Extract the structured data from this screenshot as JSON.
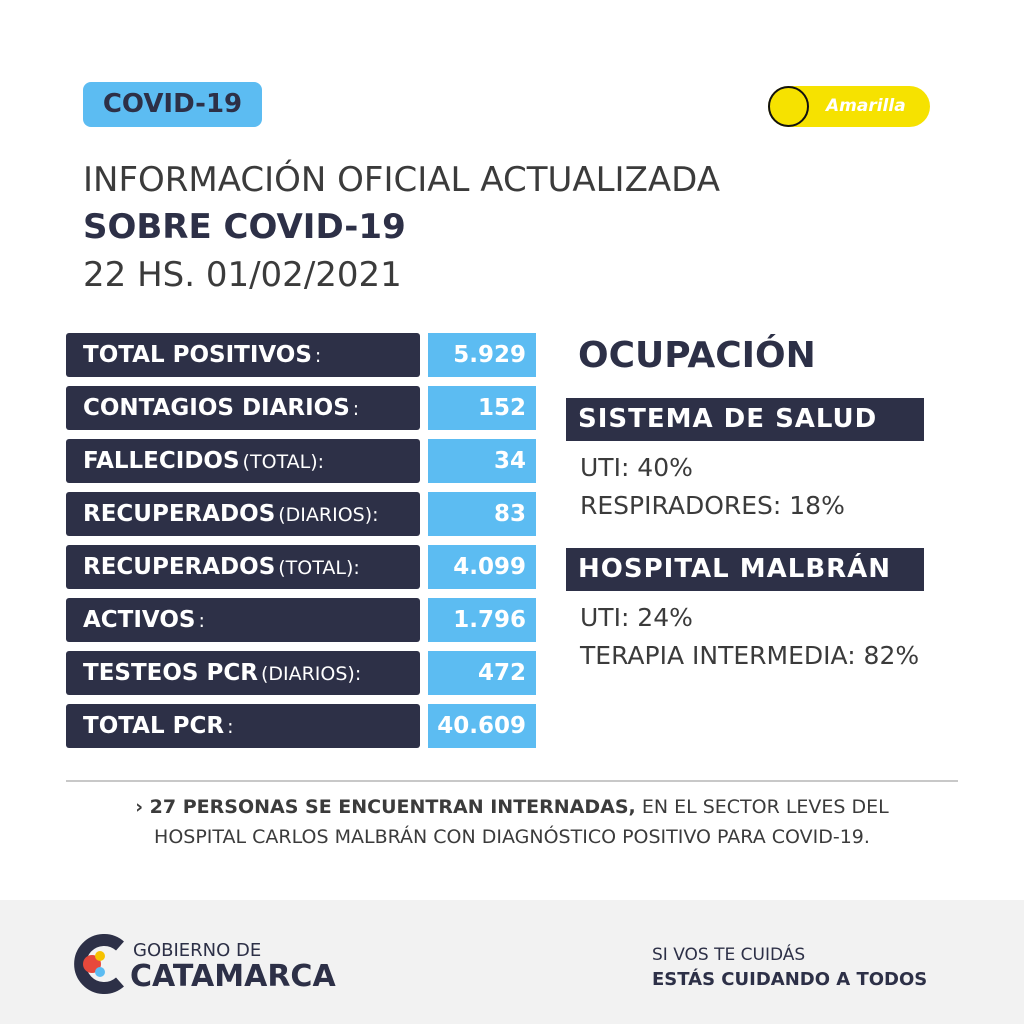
{
  "header": {
    "badge": "COVID-19",
    "status": "Amarilla",
    "title_line1": "INFORMACIÓN OFICIAL ACTUALIZADA",
    "title_line2": "SOBRE COVID-19",
    "date": "22 HS. 01/02/2021"
  },
  "table": {
    "rows": [
      [
        "TOTAL POSITIVOS",
        ":",
        "5.929"
      ],
      [
        "CONTAGIOS DIARIOS",
        ":",
        "152"
      ],
      [
        "FALLECIDOS",
        "(TOTAL):",
        "34"
      ],
      [
        "RECUPERADOS",
        "(DIARIOS):",
        "83"
      ],
      [
        "RECUPERADOS",
        "(TOTAL):",
        "4.099"
      ],
      [
        "ACTIVOS",
        ":",
        "1.796"
      ],
      [
        "TESTEOS PCR",
        "(DIARIOS):",
        "472"
      ],
      [
        "TOTAL PCR",
        ":",
        "40.609"
      ]
    ]
  },
  "occupancy": {
    "title": "OCUPACIÓN",
    "groups": [
      {
        "name": "SISTEMA DE SALUD",
        "items": [
          "UTI: 40%",
          "RESPIRADORES: 18%"
        ]
      },
      {
        "name": "HOSPITAL MALBRÁN",
        "items": [
          "UTI: 24%",
          "TERAPIA INTERMEDIA: 82%"
        ]
      }
    ]
  },
  "note": {
    "bold": "› 27 PERSONAS SE ENCUENTRAN INTERNADAS,",
    "line1": "EN EL SECTOR LEVES DEL",
    "line2": "HOSPITAL CARLOS MALBRÁN CON DIAGNÓSTICO POSITIVO PARA COVID-19."
  },
  "footer": {
    "logo_top": "GOBIERNO DE",
    "logo_main": "CATAMARCA",
    "slogan_top": "SI VOS TE CUIDÁS",
    "slogan_bottom": "ESTÁS CUIDANDO A TODOS"
  }
}
